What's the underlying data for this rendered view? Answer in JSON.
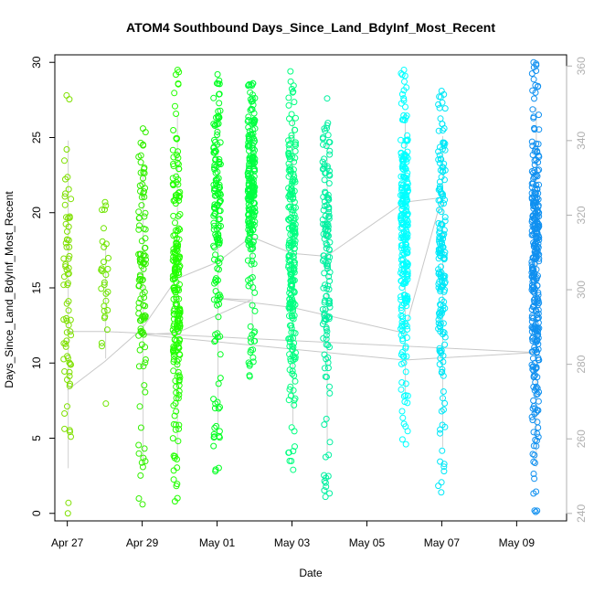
{
  "chart_data": {
    "type": "scatter",
    "title": "ATOM4 Southbound Days_Since_Land_BdyInf_Most_Recent",
    "xlabel": "Date",
    "ylabel": "Days_Since_Land_BdyInf_Most_Recent",
    "x_ticks": [
      "Apr 27",
      "Apr 29",
      "May 01",
      "May 03",
      "May 05",
      "May 07",
      "May 09"
    ],
    "x_range": [
      "2023-04-26T16:00",
      "2023-05-10T08:00"
    ],
    "ylim": [
      -0.5,
      30.5
    ],
    "y_ticks": [
      0,
      5,
      10,
      15,
      20,
      25,
      30
    ],
    "y2_ticks": [
      240,
      260,
      280,
      300,
      320,
      340,
      360
    ],
    "y2lim": [
      238,
      363
    ],
    "grid": false,
    "point_style": "open-circle",
    "series": [
      {
        "date": "2023-04-27T00:00",
        "color": "#7FE000",
        "ymin": 0.0,
        "ymax": 27.8,
        "center": 14,
        "n": 70
      },
      {
        "date": "2023-04-28T00:00",
        "color": "#6FE500",
        "ymin": 7.3,
        "ymax": 20.7,
        "center": 15,
        "n": 28
      },
      {
        "date": "2023-04-29T00:00",
        "color": "#33F000",
        "ymin": 0.6,
        "ymax": 25.6,
        "center": 16,
        "n": 110
      },
      {
        "date": "2023-04-29T22:00",
        "color": "#22FF00",
        "ymin": 0.8,
        "ymax": 29.5,
        "center": 15,
        "n": 220
      },
      {
        "date": "2023-05-01T00:00",
        "color": "#00FF20",
        "ymin": 2.8,
        "ymax": 29.2,
        "center": 20,
        "n": 150
      },
      {
        "date": "2023-05-01T22:00",
        "color": "#00FF40",
        "ymin": 9.1,
        "ymax": 28.6,
        "center": 22,
        "n": 230
      },
      {
        "date": "2023-05-03T00:00",
        "color": "#00FF80",
        "ymin": 2.9,
        "ymax": 29.4,
        "center": 18,
        "n": 240
      },
      {
        "date": "2023-05-03T22:00",
        "color": "#00F0A0",
        "ymin": 1.1,
        "ymax": 27.6,
        "center": 18,
        "n": 150
      },
      {
        "date": "2023-05-06T00:00",
        "color": "#00FFFF",
        "ymin": 4.6,
        "ymax": 29.5,
        "center": 19,
        "n": 260
      },
      {
        "date": "2023-05-07T00:00",
        "color": "#00E8F8",
        "ymin": 1.4,
        "ymax": 28.1,
        "center": 19,
        "n": 180
      },
      {
        "date": "2023-05-09T12:00",
        "color": "#1090F0",
        "ymin": 0.1,
        "ymax": 30.0,
        "center": 16,
        "n": 320
      }
    ],
    "trend_line": {
      "color": "#c8c8c8",
      "points": [
        {
          "date": "2023-04-27T00:00",
          "y": 8.2
        },
        {
          "date": "2023-04-28T00:00",
          "y": 10.1
        },
        {
          "date": "2023-04-29T00:00",
          "y": 12.3
        },
        {
          "date": "2023-04-29T22:00",
          "y": 15.6
        },
        {
          "date": "2023-05-01T00:00",
          "y": 16.7
        },
        {
          "date": "2023-05-01T22:00",
          "y": 18.4
        },
        {
          "date": "2023-05-03T00:00",
          "y": 17.3
        },
        {
          "date": "2023-05-03T22:00",
          "y": 17.1
        },
        {
          "date": "2023-05-06T00:00",
          "y": 20.7
        },
        {
          "date": "2023-05-07T00:00",
          "y": 21.0
        },
        {
          "date": "2023-05-06T00:00",
          "y": 12.0
        },
        {
          "date": "2023-05-03T00:00",
          "y": 13.7
        },
        {
          "date": "2023-05-01T00:00",
          "y": 14.3
        },
        {
          "date": "2023-05-01T22:00",
          "y": 14.2
        },
        {
          "date": "2023-04-29T22:00",
          "y": 12.0
        },
        {
          "date": "2023-04-29T00:00",
          "y": 11.9
        },
        {
          "date": "2023-05-06T00:00",
          "y": 10.2
        },
        {
          "date": "2023-05-09T12:00",
          "y": 10.7
        },
        {
          "date": "2023-04-28T00:00",
          "y": 12.1
        },
        {
          "date": "2023-04-27T00:00",
          "y": 12.1
        }
      ]
    }
  }
}
